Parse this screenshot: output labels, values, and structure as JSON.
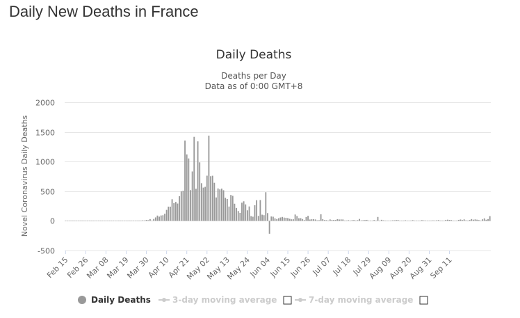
{
  "page": {
    "title": "Daily New Deaths in France"
  },
  "chart_data": {
    "type": "bar",
    "title": "Daily Deaths",
    "subtitle": "Deaths per Day",
    "subtitle2": "Data as of 0:00 GMT+8",
    "ylabel": "Novel Coronavirus Daily Deaths",
    "xlabel": "",
    "ylim": [
      -500,
      2000
    ],
    "yticks": [
      -500,
      0,
      500,
      1000,
      1500,
      2000
    ],
    "x_tick_labels": [
      "Feb 15",
      "Feb 26",
      "Mar 08",
      "Mar 19",
      "Mar 30",
      "Apr 10",
      "Apr 21",
      "May 02",
      "May 13",
      "May 24",
      "Jun 04",
      "Jun 15",
      "Jun 26",
      "Jul 07",
      "Jul 18",
      "Jul 29",
      "Aug 09",
      "Aug 20",
      "Aug 31",
      "Sep 11"
    ],
    "x_tick_every": 11,
    "series": [
      {
        "name": "Daily Deaths",
        "color": "#999999",
        "values": [
          0,
          0,
          0,
          0,
          0,
          0,
          0,
          0,
          0,
          0,
          0,
          0,
          0,
          0,
          0,
          0,
          0,
          0,
          0,
          0,
          0,
          0,
          0,
          0,
          0,
          0,
          0,
          0,
          0,
          0,
          0,
          2,
          0,
          0,
          0,
          0,
          0,
          0,
          3,
          1,
          0,
          2,
          9,
          7,
          16,
          11,
          30,
          0,
          32,
          58,
          89,
          71,
          91,
          95,
          120,
          185,
          240,
          240,
          365,
          299,
          320,
          292,
          417,
          499,
          509,
          1355,
          1120,
          1053,
          518,
          833,
          1417,
          541,
          1341,
          987,
          635,
          561,
          574,
          762,
          1438,
          753,
          761,
          642,
          395,
          547,
          531,
          544,
          516,
          389,
          369,
          242,
          437,
          422,
          289,
          218,
          166,
          135,
          306,
          330,
          278,
          178,
          243,
          80,
          70,
          263,
          348,
          83,
          351,
          104,
          96,
          483,
          131,
          -217,
          74,
          70,
          43,
          31,
          45,
          57,
          66,
          55,
          52,
          47,
          35,
          26,
          27,
          107,
          81,
          44,
          46,
          31,
          13,
          65,
          85,
          23,
          27,
          28,
          24,
          9,
          11,
          111,
          28,
          14,
          12,
          0,
          24,
          14,
          16,
          15,
          29,
          23,
          25,
          24,
          5,
          6,
          11,
          4,
          12,
          14,
          5,
          12,
          32,
          8,
          11,
          13,
          17,
          6,
          3,
          4,
          14,
          -6,
          66,
          0,
          18,
          9,
          0,
          0,
          4,
          0,
          9,
          9,
          14,
          14,
          0,
          0,
          0,
          10,
          4,
          0,
          5,
          12,
          2,
          0,
          0,
          3,
          12,
          8,
          6,
          0,
          0,
          0,
          8,
          6,
          9,
          13,
          0,
          0,
          0,
          17,
          20,
          16,
          13,
          0,
          0,
          0,
          17,
          23,
          14,
          25,
          9,
          0,
          15,
          30,
          20,
          25,
          20,
          13,
          0,
          26,
          42,
          19,
          30,
          80
        ]
      },
      {
        "name": "3-day moving average",
        "color": "#cccccc",
        "visible": false
      },
      {
        "name": "7-day moving average",
        "color": "#cccccc",
        "visible": false
      }
    ]
  }
}
